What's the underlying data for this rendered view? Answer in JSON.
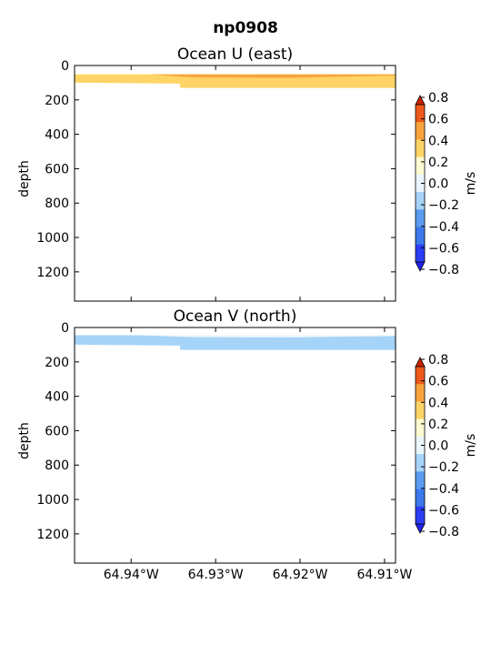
{
  "figure_title": "np0908",
  "colorbar": {
    "label": "m/s",
    "levels": [
      -0.8,
      -0.6,
      -0.4,
      -0.2,
      0.0,
      0.2,
      0.4,
      0.6,
      0.8
    ],
    "tick_labels": [
      "−0.8",
      "−0.6",
      "−0.4",
      "−0.2",
      "0.0",
      "0.2",
      "0.4",
      "0.6",
      "0.8"
    ],
    "colors": [
      "#2c3ef5",
      "#3d78ec",
      "#5b9cf0",
      "#a6d3f8",
      "#e9f6fd",
      "#fffbd0",
      "#ffd466",
      "#f8a33d",
      "#ee5a1c"
    ],
    "extend_low_color": "#2222ee",
    "extend_high_color": "#cc2200"
  },
  "chart_data": [
    {
      "type": "heatmap",
      "title": "Ocean U (east)",
      "xlabel": "",
      "ylabel": "depth",
      "xlim": [
        -64.9467,
        -64.9087
      ],
      "ylim": [
        1370,
        0
      ],
      "x_ticks": [
        -64.94,
        -64.93,
        -64.92,
        -64.91
      ],
      "x_tick_labels": [],
      "y_ticks": [
        0,
        200,
        400,
        600,
        800,
        1000,
        1200
      ],
      "y_tick_labels": [
        "0",
        "200",
        "400",
        "600",
        "800",
        "1000",
        "1200"
      ],
      "grid": false,
      "bands": [
        {
          "value": 0.3,
          "color": "#ffd466",
          "poly": [
            [
              -64.9467,
              52
            ],
            [
              -64.9087,
              52
            ],
            [
              -64.9087,
              130
            ],
            [
              -64.9342,
              130
            ],
            [
              -64.9342,
              105
            ],
            [
              -64.9467,
              100
            ]
          ]
        },
        {
          "value": 0.5,
          "color": "#f8a33d",
          "poly": [
            [
              -64.9378,
              52
            ],
            [
              -64.9087,
              52
            ],
            [
              -64.9087,
              58
            ],
            [
              -64.9215,
              72
            ],
            [
              -64.933,
              68
            ]
          ]
        }
      ]
    },
    {
      "type": "heatmap",
      "title": "Ocean V (north)",
      "xlabel": "",
      "ylabel": "depth",
      "xlim": [
        -64.9467,
        -64.9087
      ],
      "ylim": [
        1370,
        0
      ],
      "x_ticks": [
        -64.94,
        -64.93,
        -64.92,
        -64.91
      ],
      "x_tick_labels": [
        "64.94°W",
        "64.93°W",
        "64.92°W",
        "64.91°W"
      ],
      "y_ticks": [
        0,
        200,
        400,
        600,
        800,
        1000,
        1200
      ],
      "y_tick_labels": [
        "0",
        "200",
        "400",
        "600",
        "800",
        "1000",
        "1200"
      ],
      "grid": false,
      "bands": [
        {
          "value": -0.1,
          "color": "#a6d3f8",
          "poly": [
            [
              -64.9467,
              45
            ],
            [
              -64.9087,
              45
            ],
            [
              -64.9087,
              130
            ],
            [
              -64.9342,
              130
            ],
            [
              -64.9342,
              105
            ],
            [
              -64.9467,
              100
            ]
          ]
        },
        {
          "value": 0.0,
          "color": "#e9f6fd",
          "poly": [
            [
              -64.939,
              45
            ],
            [
              -64.9087,
              45
            ],
            [
              -64.9087,
              50
            ],
            [
              -64.9215,
              58
            ],
            [
              -64.933,
              56
            ]
          ]
        }
      ]
    }
  ]
}
